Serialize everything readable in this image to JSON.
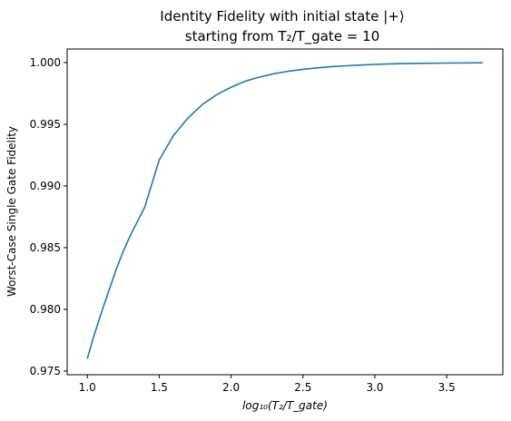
{
  "chart_data": {
    "type": "line",
    "title_line1": "Identity Fidelity with initial state |+⟩",
    "title_line2": "starting from T₂/T_gate = 10",
    "xlabel": "log₁₀(T₂/T_gate)",
    "ylabel": "Worst-Case Single Gate Fidelity",
    "xlim": [
      0.86,
      3.89
    ],
    "ylim": [
      0.9747,
      1.0011
    ],
    "xticks": [
      1.0,
      1.5,
      2.0,
      2.5,
      3.0,
      3.5
    ],
    "xtick_labels": [
      "1.0",
      "1.5",
      "2.0",
      "2.5",
      "3.0",
      "3.5"
    ],
    "yticks": [
      0.975,
      0.98,
      0.985,
      0.99,
      0.995,
      1.0
    ],
    "ytick_labels": [
      "0.975",
      "0.980",
      "0.985",
      "0.990",
      "0.995",
      "1.000"
    ],
    "grid": false,
    "series": [
      {
        "color": "#1f77b4",
        "x": [
          1.0,
          1.05,
          1.1,
          1.15,
          1.2,
          1.25,
          1.3,
          1.4,
          1.5,
          1.6,
          1.7,
          1.8,
          1.9,
          2.0,
          2.1,
          2.2,
          2.3,
          2.4,
          2.5,
          2.6,
          2.7,
          2.8,
          2.9,
          3.0,
          3.1,
          3.2,
          3.3,
          3.4,
          3.5,
          3.6,
          3.75
        ],
        "y": [
          0.976,
          0.978,
          0.9798,
          0.9815,
          0.9832,
          0.9847,
          0.986,
          0.9883,
          0.9921,
          0.9941,
          0.9955,
          0.9966,
          0.9974,
          0.998,
          0.9985,
          0.99883,
          0.9991,
          0.9993,
          0.99945,
          0.99957,
          0.99967,
          0.99974,
          0.9998,
          0.99985,
          0.99989,
          0.99992,
          0.99994,
          0.99995,
          0.99996,
          0.99997,
          0.99998
        ]
      }
    ]
  }
}
